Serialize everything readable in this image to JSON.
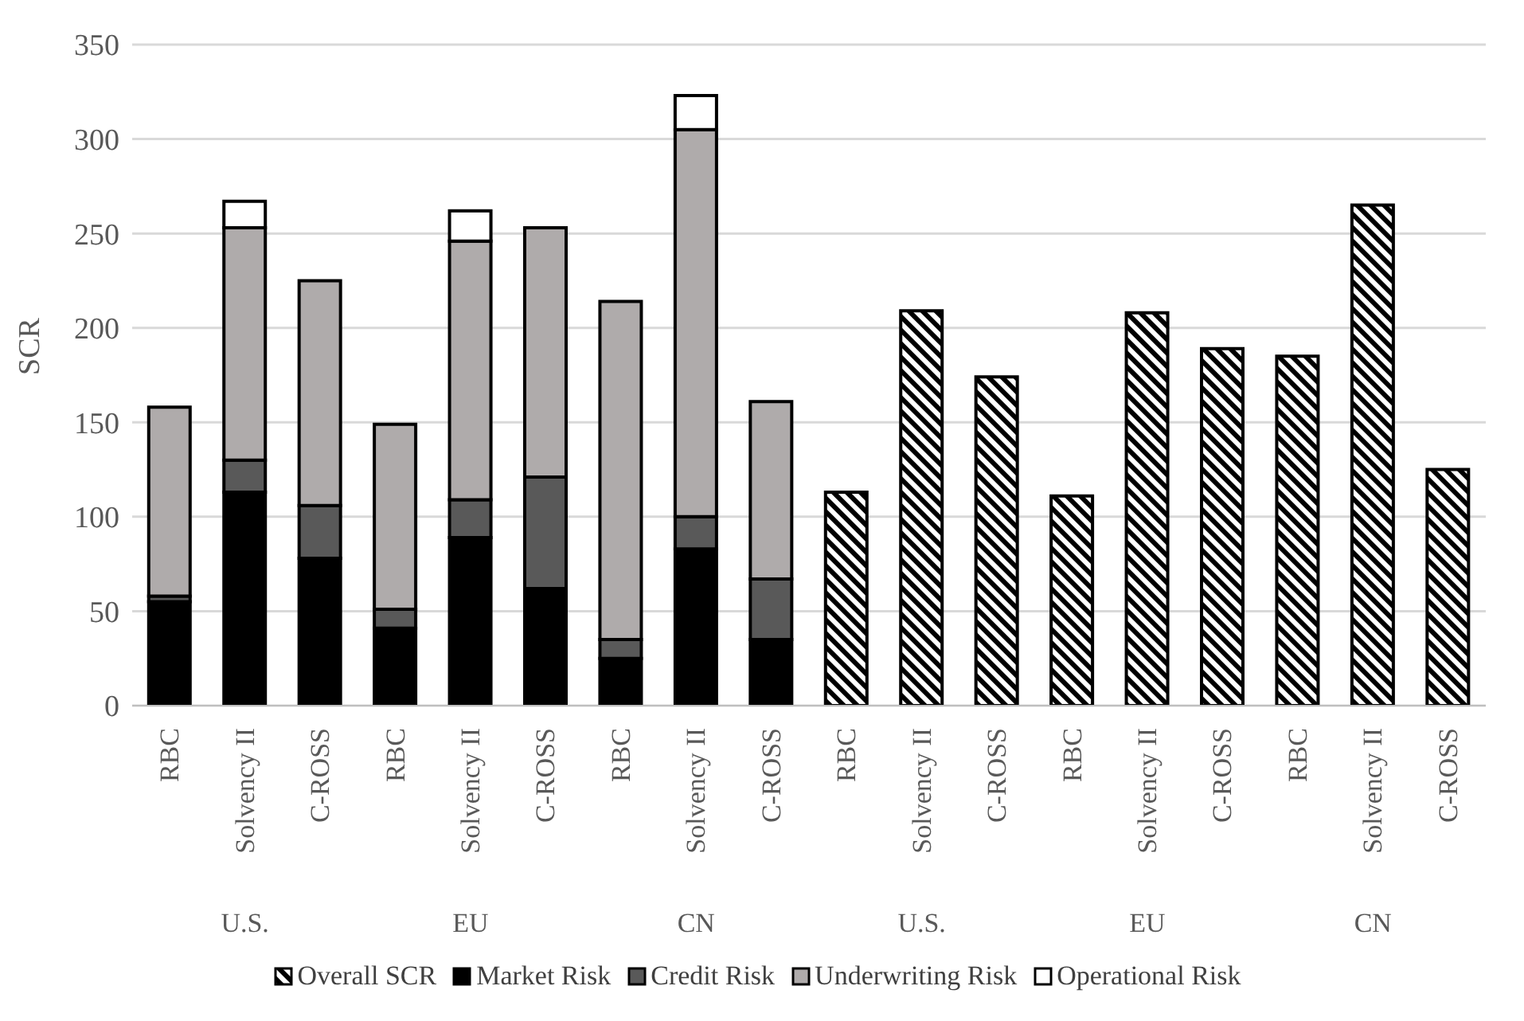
{
  "chart_data": {
    "type": "bar",
    "stacked": true,
    "ylabel": "SCR",
    "categories": [
      "RBC",
      "Solvency II",
      "C-ROSS",
      "RBC",
      "Solvency II",
      "C-ROSS",
      "RBC",
      "Solvency II",
      "C-ROSS",
      "RBC",
      "Solvency II",
      "C-ROSS",
      "RBC",
      "Solvency II",
      "C-ROSS",
      "RBC",
      "Solvency II",
      "C-ROSS"
    ],
    "annotations": [
      "U.S.",
      "EU",
      "CN",
      "U.S.",
      "EU",
      "CN"
    ],
    "ylim": [
      0,
      350
    ],
    "yticks": [
      0,
      50,
      100,
      150,
      200,
      250,
      300,
      350
    ],
    "grid": "y",
    "legend": "bottom",
    "series": [
      {
        "name": "Overall SCR",
        "color": "#000000",
        "values": [
          null,
          null,
          null,
          null,
          null,
          null,
          null,
          null,
          null,
          113,
          209,
          174,
          111,
          208,
          189,
          185,
          265,
          125
        ]
      },
      {
        "name": "Market Risk",
        "color": "#000000",
        "values": [
          55,
          113,
          78,
          41,
          89,
          62,
          25,
          83,
          35,
          null,
          null,
          null,
          null,
          null,
          null,
          null,
          null,
          null
        ]
      },
      {
        "name": "Credit Risk",
        "color": "#595959",
        "values": [
          3,
          17,
          28,
          10,
          20,
          59,
          10,
          17,
          32,
          null,
          null,
          null,
          null,
          null,
          null,
          null,
          null,
          null
        ]
      },
      {
        "name": "Underwriting Risk",
        "color": "#afabab",
        "values": [
          100,
          123,
          119,
          98,
          137,
          132,
          179,
          205,
          94,
          null,
          null,
          null,
          null,
          null,
          null,
          null,
          null,
          null
        ]
      },
      {
        "name": "Operational Risk",
        "color": "#ffffff",
        "values": [
          null,
          14,
          null,
          null,
          16,
          null,
          null,
          18,
          null,
          null,
          null,
          null,
          null,
          null,
          null,
          null,
          null,
          null
        ]
      }
    ]
  }
}
